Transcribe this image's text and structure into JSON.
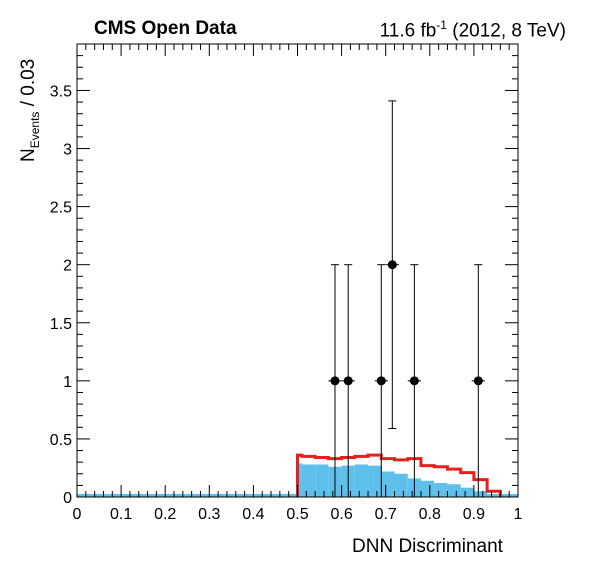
{
  "header": {
    "left": "CMS Open Data",
    "lumi_value": "11.6 fb",
    "lumi_exp": "-1",
    "lumi_tail": " (2012, 8 TeV)"
  },
  "axes": {
    "xlabel": "DNN Discriminant",
    "ylabel_main": "N",
    "ylabel_sub": "Events",
    "ylabel_tail": " / 0.03"
  },
  "chart_data": {
    "type": "bar",
    "xlim": [
      0,
      1
    ],
    "ylim": [
      0,
      3.9
    ],
    "bin_width": 0.03,
    "x_ticks": [
      "0",
      "0.1",
      "0.2",
      "0.3",
      "0.4",
      "0.5",
      "0.6",
      "0.7",
      "0.8",
      "0.9",
      "1"
    ],
    "y_ticks": [
      "0",
      "0.5",
      "1",
      "1.5",
      "2",
      "2.5",
      "3",
      "3.5"
    ],
    "grid": false,
    "series": [
      {
        "kind": "filled",
        "color": "#5ebfea",
        "bins": [
          {
            "x0": 0.5,
            "x1": 0.51,
            "y": 0.29
          },
          {
            "x0": 0.51,
            "x1": 0.54,
            "y": 0.28
          },
          {
            "x0": 0.54,
            "x1": 0.57,
            "y": 0.28
          },
          {
            "x0": 0.57,
            "x1": 0.6,
            "y": 0.26
          },
          {
            "x0": 0.6,
            "x1": 0.63,
            "y": 0.27
          },
          {
            "x0": 0.63,
            "x1": 0.66,
            "y": 0.28
          },
          {
            "x0": 0.66,
            "x1": 0.69,
            "y": 0.27
          },
          {
            "x0": 0.69,
            "x1": 0.72,
            "y": 0.22
          },
          {
            "x0": 0.72,
            "x1": 0.75,
            "y": 0.2
          },
          {
            "x0": 0.75,
            "x1": 0.78,
            "y": 0.16
          },
          {
            "x0": 0.78,
            "x1": 0.81,
            "y": 0.14
          },
          {
            "x0": 0.81,
            "x1": 0.84,
            "y": 0.12
          },
          {
            "x0": 0.84,
            "x1": 0.87,
            "y": 0.11
          },
          {
            "x0": 0.87,
            "x1": 0.9,
            "y": 0.08
          },
          {
            "x0": 0.9,
            "x1": 0.93,
            "y": 0.05
          },
          {
            "x0": 0.93,
            "x1": 0.96,
            "y": 0.02
          }
        ]
      },
      {
        "kind": "step",
        "color": "#e8201c",
        "bins": [
          {
            "x0": 0.5,
            "x1": 0.51,
            "y": 0.36
          },
          {
            "x0": 0.51,
            "x1": 0.54,
            "y": 0.35
          },
          {
            "x0": 0.54,
            "x1": 0.57,
            "y": 0.34
          },
          {
            "x0": 0.57,
            "x1": 0.6,
            "y": 0.33
          },
          {
            "x0": 0.6,
            "x1": 0.63,
            "y": 0.34
          },
          {
            "x0": 0.63,
            "x1": 0.66,
            "y": 0.35
          },
          {
            "x0": 0.66,
            "x1": 0.69,
            "y": 0.36
          },
          {
            "x0": 0.69,
            "x1": 0.72,
            "y": 0.33
          },
          {
            "x0": 0.72,
            "x1": 0.75,
            "y": 0.32
          },
          {
            "x0": 0.75,
            "x1": 0.78,
            "y": 0.33
          },
          {
            "x0": 0.78,
            "x1": 0.81,
            "y": 0.27
          },
          {
            "x0": 0.81,
            "x1": 0.84,
            "y": 0.26
          },
          {
            "x0": 0.84,
            "x1": 0.87,
            "y": 0.24
          },
          {
            "x0": 0.87,
            "x1": 0.9,
            "y": 0.21
          },
          {
            "x0": 0.9,
            "x1": 0.93,
            "y": 0.15
          },
          {
            "x0": 0.93,
            "x1": 0.96,
            "y": 0.05
          }
        ]
      },
      {
        "kind": "points",
        "color": "#000000",
        "points": [
          {
            "x": 0.585,
            "y": 1,
            "ylo": 0,
            "yhi": 2.0
          },
          {
            "x": 0.615,
            "y": 1,
            "ylo": 0,
            "yhi": 2.0
          },
          {
            "x": 0.69,
            "y": 1,
            "ylo": 0,
            "yhi": 2.0
          },
          {
            "x": 0.715,
            "y": 2,
            "ylo": 0.59,
            "yhi": 3.41
          },
          {
            "x": 0.765,
            "y": 1,
            "ylo": 0,
            "yhi": 2.0
          },
          {
            "x": 0.91,
            "y": 1,
            "ylo": 0,
            "yhi": 2.0
          }
        ]
      }
    ],
    "baseline_color": "#5ebfea"
  }
}
